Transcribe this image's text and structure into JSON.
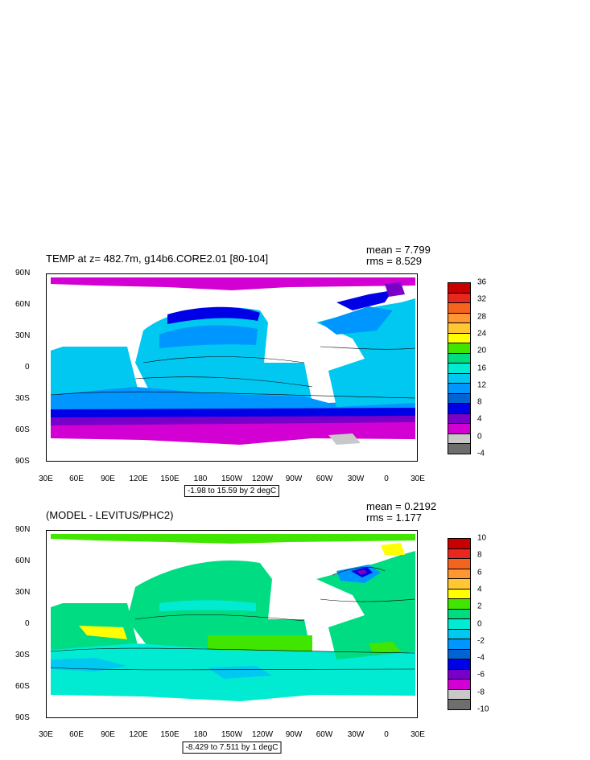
{
  "top": {
    "title": "TEMP at z= 482.7m, g14b6.CORE2.01 [80-104]",
    "mean": "mean = 7.799",
    "rms": "rms = 8.529",
    "range": "-1.98 to 15.59 by 2 degC",
    "colorbar": {
      "labels": [
        "36",
        "32",
        "28",
        "24",
        "20",
        "16",
        "12",
        "8",
        "4",
        "0",
        "-4"
      ],
      "colors": [
        "#c80000",
        "#e8281e",
        "#f5641e",
        "#ff9632",
        "#ffc832",
        "#ffff00",
        "#41e600",
        "#00dc82",
        "#00ebd2",
        "#00c8f0",
        "#0096ff",
        "#0064d2",
        "#0000e6",
        "#7800c8",
        "#d200d2",
        "#c8c8c8",
        "#6e6e6e"
      ]
    }
  },
  "bottom": {
    "title": "(MODEL - LEVITUS/PHC2)",
    "mean": "mean = 0.2192",
    "rms": "rms = 1.177",
    "range": "-8.429 to 7.511 by 1 degC",
    "colorbar": {
      "labels": [
        "10",
        "8",
        "6",
        "4",
        "2",
        "0",
        "-2",
        "-4",
        "-6",
        "-8",
        "-10"
      ],
      "colors": [
        "#c80000",
        "#e8281e",
        "#f5641e",
        "#ff9632",
        "#ffc832",
        "#ffff00",
        "#41e600",
        "#00dc82",
        "#00ebd2",
        "#00c8f0",
        "#0096ff",
        "#0064d2",
        "#0000e6",
        "#7800c8",
        "#d200d2",
        "#c8c8c8",
        "#6e6e6e"
      ]
    }
  },
  "axes": {
    "y_labels": [
      "90N",
      "60N",
      "30N",
      "0",
      "30S",
      "60S",
      "90S"
    ],
    "x_labels": [
      "30E",
      "60E",
      "90E",
      "120E",
      "150E",
      "180",
      "150W",
      "120W",
      "90W",
      "60W",
      "30W",
      "0",
      "30E"
    ]
  },
  "colors": {
    "land": "#ffffff",
    "ocean_top_main": "#00c8f0",
    "ocean_top_warm": "#0096ff",
    "ocean_top_cold": "#0000e6",
    "ocean_top_polar": "#d200d2",
    "ocean_bottom_main": "#00dc82",
    "ocean_bottom_light": "#00ebd2",
    "ocean_bottom_lime": "#41e600"
  }
}
